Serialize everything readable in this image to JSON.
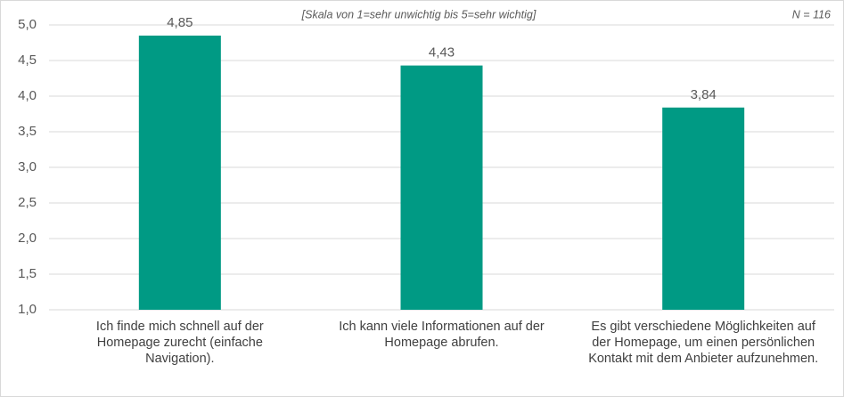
{
  "chart_data": {
    "type": "bar",
    "annotations": [
      "[Skala von 1=sehr unwichtig bis 5=sehr wichtig]",
      "N = 116"
    ],
    "categories": [
      "Ich finde mich schnell auf der Homepage zurecht (einfache Navigation).",
      "Ich kann viele Informationen auf der Homepage abrufen.",
      "Es gibt verschiedene Möglichkeiten auf der Homepage, um einen persönlichen Kontakt mit dem Anbieter aufzunehmen."
    ],
    "values": [
      4.85,
      4.43,
      3.84
    ],
    "value_labels": [
      "4,85",
      "4,43",
      "3,84"
    ],
    "color": "#009a84",
    "ylim": [
      1,
      5
    ],
    "yticks": [
      {
        "value": 1,
        "label": "1,0"
      },
      {
        "value": 1.5,
        "label": "1,5"
      },
      {
        "value": 2,
        "label": "2,0"
      },
      {
        "value": 2.5,
        "label": "2,5"
      },
      {
        "value": 3,
        "label": "3,0"
      },
      {
        "value": 3.5,
        "label": "3,5"
      },
      {
        "value": 4,
        "label": "4,0"
      },
      {
        "value": 4.5,
        "label": "4,5"
      },
      {
        "value": 5,
        "label": "5,0"
      }
    ],
    "grid": true
  }
}
